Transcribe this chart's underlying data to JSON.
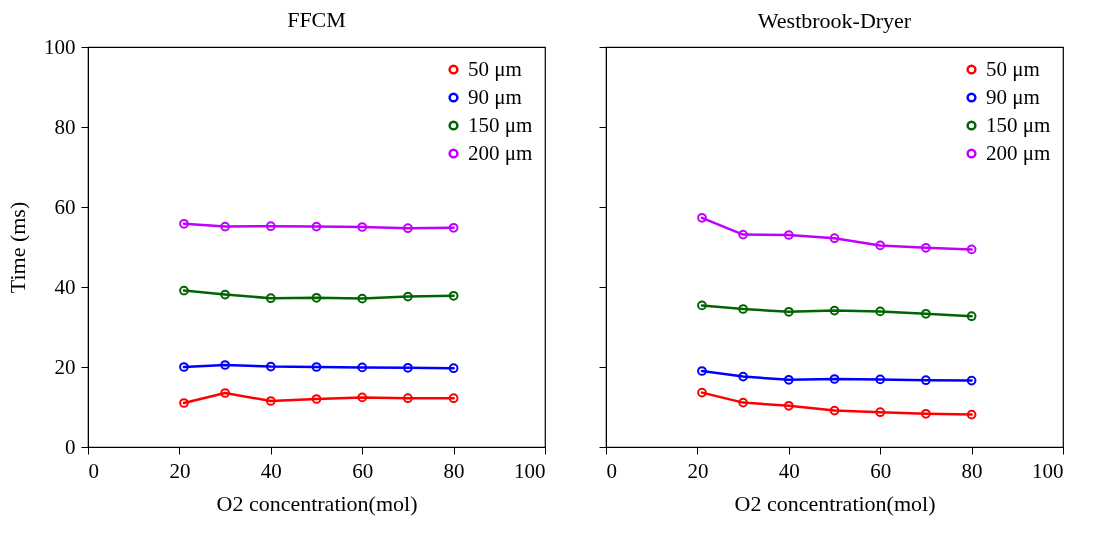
{
  "chart_data": [
    {
      "type": "line",
      "title": "FFCM",
      "xlabel": "O2 concentration(mol)",
      "ylabel": "Time (ms)",
      "x": [
        21,
        30,
        40,
        50,
        60,
        70,
        80
      ],
      "xlim": [
        0,
        100
      ],
      "xticks": [
        0,
        20,
        40,
        60,
        80,
        100
      ],
      "ylim": [
        0,
        100
      ],
      "yticks": [
        0,
        20,
        40,
        60,
        80,
        100
      ],
      "legend": "top right",
      "marker": "circle",
      "line_style": "solid",
      "series": [
        {
          "name": "50 μm",
          "color": "#ff0000",
          "values": [
            11,
            13.5,
            11.5,
            12,
            12.4,
            12.2,
            12.2
          ]
        },
        {
          "name": "90 μm",
          "color": "#0000ff",
          "values": [
            20,
            20.5,
            20.1,
            20,
            19.9,
            19.8,
            19.7
          ]
        },
        {
          "name": "150 μm",
          "color": "#006400",
          "values": [
            39.1,
            38.1,
            37.2,
            37.3,
            37.1,
            37.6,
            37.8
          ]
        },
        {
          "name": "200 μm",
          "color": "#c000ff",
          "values": [
            55.8,
            55.1,
            55.2,
            55.1,
            55,
            54.7,
            54.8
          ]
        }
      ]
    },
    {
      "type": "line",
      "title": "Westbrook-Dryer",
      "xlabel": "O2 concentration(mol)",
      "x": [
        21,
        30,
        40,
        50,
        60,
        70,
        80
      ],
      "xlim": [
        0,
        100
      ],
      "xticks": [
        0,
        20,
        40,
        60,
        80,
        100
      ],
      "ylim": [
        0,
        100
      ],
      "yticks": [
        0,
        20,
        40,
        60,
        80,
        100
      ],
      "tick_labels": "x",
      "legend": "top right",
      "marker": "circle",
      "line_style": "solid",
      "series": [
        {
          "name": "50 μm",
          "color": "#ff0000",
          "values": [
            13.6,
            11.1,
            10.3,
            9.1,
            8.7,
            8.3,
            8.1
          ]
        },
        {
          "name": "90 μm",
          "color": "#0000ff",
          "values": [
            19,
            17.6,
            16.8,
            17,
            16.9,
            16.7,
            16.6
          ]
        },
        {
          "name": "150 μm",
          "color": "#006400",
          "values": [
            35.4,
            34.5,
            33.8,
            34.1,
            33.9,
            33.3,
            32.7
          ]
        },
        {
          "name": "200 μm",
          "color": "#c000ff",
          "values": [
            57.3,
            53.1,
            53,
            52.2,
            50.4,
            49.8,
            49.4
          ]
        }
      ]
    }
  ]
}
